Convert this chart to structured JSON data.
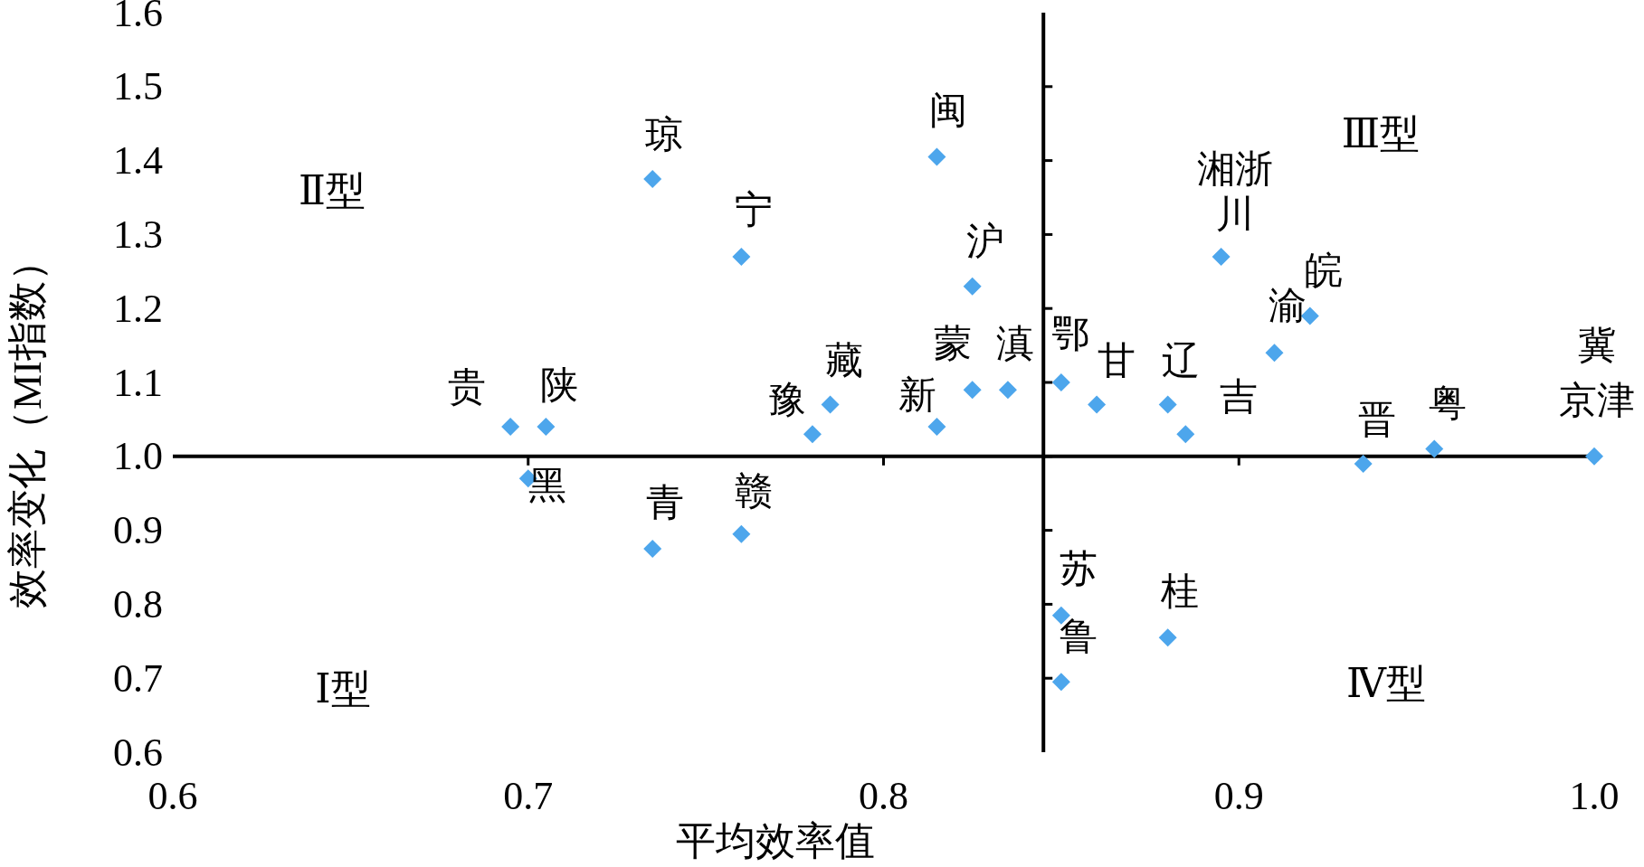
{
  "chart_data": {
    "type": "scatter",
    "xlabel": "平均效率值",
    "ylabel": "效率变化（MI指数）",
    "xlim": [
      0.6,
      1.0
    ],
    "ylim": [
      0.6,
      1.6
    ],
    "xticks": [
      0.6,
      0.7,
      0.8,
      0.9,
      {
        "value": 1.0,
        "label": "1.0"
      }
    ],
    "yticks": [
      0.6,
      0.7,
      0.8,
      0.9,
      {
        "value": 1.0,
        "label": "1.0"
      },
      1.1,
      1.2,
      1.3,
      1.4,
      1.5,
      1.6
    ],
    "marker": "diamond",
    "ref_lines": [
      {
        "axis": "x",
        "value": 0.845,
        "color": "#000000"
      },
      {
        "axis": "y",
        "value": 1.0,
        "color": "#000000"
      }
    ],
    "annotations": [
      "Ⅱ型",
      "Ⅲ型",
      "Ⅰ型",
      "Ⅳ型"
    ],
    "series": [
      {
        "color": "#4da6ec",
        "x": [
          0.695,
          0.705,
          0.7,
          0.735,
          0.76,
          0.735,
          0.76,
          0.78,
          0.785,
          0.815,
          0.815,
          0.825,
          0.825,
          0.835,
          0.85,
          0.86,
          0.88,
          0.885,
          0.85,
          0.85,
          0.88,
          0.895,
          0.91,
          0.92,
          0.935,
          0.955,
          1.0
        ],
        "values": [
          1.04,
          1.04,
          0.97,
          1.375,
          1.27,
          0.875,
          0.895,
          1.03,
          1.07,
          1.04,
          1.405,
          1.23,
          1.09,
          1.09,
          1.1,
          1.07,
          1.07,
          1.03,
          0.785,
          0.695,
          0.755,
          1.27,
          1.14,
          1.19,
          0.99,
          1.01,
          1.0
        ],
        "value_labels": [
          "贵",
          "陕",
          "黑",
          "琼",
          "宁",
          "青",
          "赣",
          "豫",
          "藏",
          "新",
          "闽",
          "沪",
          "蒙",
          "滇",
          "鄂",
          "甘",
          "辽",
          "吉",
          "苏",
          "鲁",
          "桂",
          "湘浙川",
          "渝",
          "皖",
          "晋",
          "粤",
          "冀京津"
        ]
      }
    ]
  }
}
